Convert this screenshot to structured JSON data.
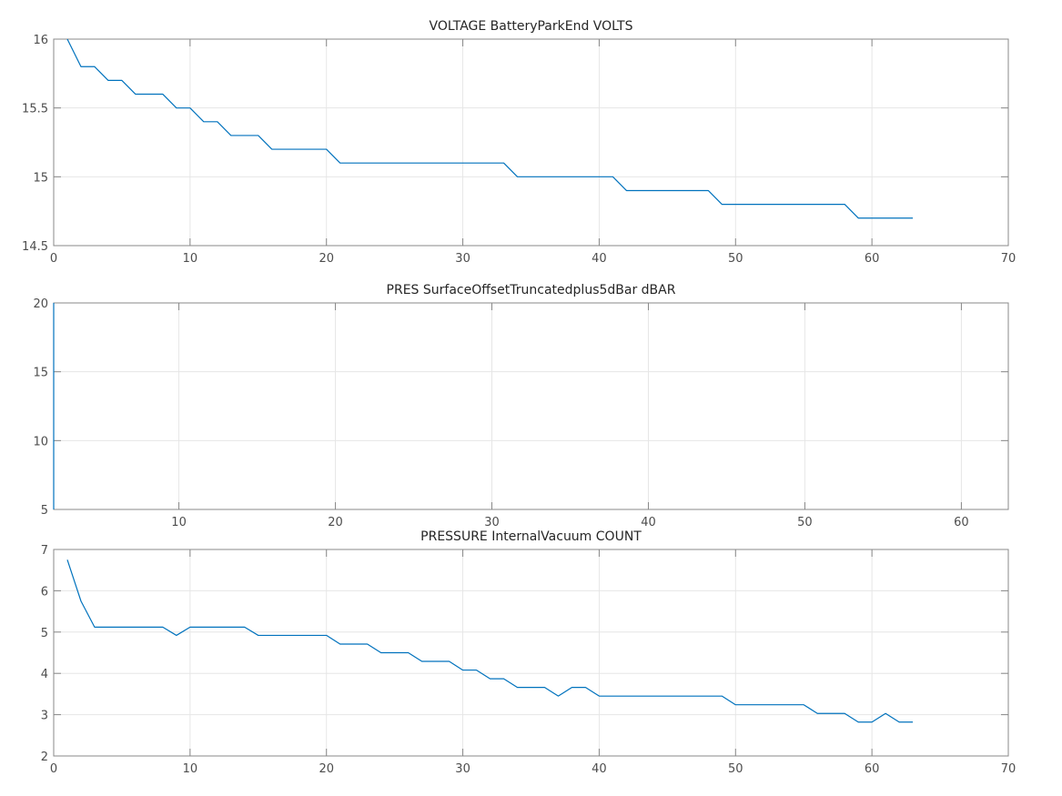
{
  "chart_data": [
    {
      "type": "line",
      "title": "VOLTAGE BatteryParkEnd VOLTS",
      "xlabel": "",
      "ylabel": "",
      "xlim": [
        0,
        70
      ],
      "ylim": [
        14.5,
        16
      ],
      "xticks": [
        0,
        10,
        20,
        30,
        40,
        50,
        60,
        70
      ],
      "yticks": [
        14.5,
        15,
        15.5,
        16
      ],
      "xtick_labels": [
        "0",
        "10",
        "20",
        "30",
        "40",
        "50",
        "60",
        "70"
      ],
      "ytick_labels": [
        "14.5",
        "15",
        "15.5",
        "16"
      ],
      "grid": true,
      "line_color": "#0072bd",
      "series": [
        {
          "x": [
            1,
            2,
            3,
            4,
            5,
            6,
            7,
            8,
            9,
            10,
            11,
            12,
            13,
            14,
            15,
            16,
            17,
            18,
            19,
            20,
            21,
            22,
            23,
            24,
            25,
            26,
            27,
            28,
            29,
            30,
            31,
            32,
            33,
            34,
            35,
            36,
            37,
            38,
            39,
            40,
            41,
            42,
            43,
            44,
            45,
            46,
            47,
            48,
            49,
            50,
            51,
            52,
            53,
            54,
            55,
            56,
            57,
            58,
            59,
            60,
            61,
            62,
            63
          ],
          "values": [
            16.0,
            15.8,
            15.8,
            15.7,
            15.7,
            15.6,
            15.6,
            15.6,
            15.5,
            15.5,
            15.4,
            15.4,
            15.3,
            15.3,
            15.3,
            15.2,
            15.2,
            15.2,
            15.2,
            15.2,
            15.1,
            15.1,
            15.1,
            15.1,
            15.1,
            15.1,
            15.1,
            15.1,
            15.1,
            15.1,
            15.1,
            15.1,
            15.1,
            15.0,
            15.0,
            15.0,
            15.0,
            15.0,
            15.0,
            15.0,
            15.0,
            14.9,
            14.9,
            14.9,
            14.9,
            14.9,
            14.9,
            14.9,
            14.8,
            14.8,
            14.8,
            14.8,
            14.8,
            14.8,
            14.8,
            14.8,
            14.8,
            14.8,
            14.7,
            14.7,
            14.7,
            14.7,
            14.7
          ]
        }
      ]
    },
    {
      "type": "line",
      "title": "PRES SurfaceOffsetTruncatedplus5dBar dBAR",
      "xlabel": "",
      "ylabel": "",
      "xlim": [
        2,
        63
      ],
      "ylim": [
        5,
        20
      ],
      "xticks": [
        10,
        20,
        30,
        40,
        50,
        60
      ],
      "yticks": [
        5,
        10,
        15,
        20
      ],
      "xtick_labels": [
        "10",
        "20",
        "30",
        "40",
        "50",
        "60"
      ],
      "ytick_labels": [
        "5",
        "10",
        "15",
        "20"
      ],
      "grid": true,
      "line_color": "#0072bd",
      "series": [
        {
          "x": [
            2,
            2
          ],
          "values": [
            5,
            20
          ]
        }
      ]
    },
    {
      "type": "line",
      "title": "PRESSURE InternalVacuum COUNT",
      "xlabel": "",
      "ylabel": "",
      "xlim": [
        0,
        70
      ],
      "ylim": [
        2,
        7
      ],
      "xticks": [
        0,
        10,
        20,
        30,
        40,
        50,
        60,
        70
      ],
      "yticks": [
        2,
        3,
        4,
        5,
        6,
        7
      ],
      "xtick_labels": [
        "0",
        "10",
        "20",
        "30",
        "40",
        "50",
        "60",
        "70"
      ],
      "ytick_labels": [
        "2",
        "3",
        "4",
        "5",
        "6",
        "7"
      ],
      "grid": true,
      "line_color": "#0072bd",
      "series": [
        {
          "x": [
            1,
            2,
            3,
            4,
            5,
            6,
            7,
            8,
            9,
            10,
            11,
            12,
            13,
            14,
            15,
            16,
            17,
            18,
            19,
            20,
            21,
            22,
            23,
            24,
            25,
            26,
            27,
            28,
            29,
            30,
            31,
            32,
            33,
            34,
            35,
            36,
            37,
            38,
            39,
            40,
            41,
            42,
            43,
            44,
            45,
            46,
            47,
            48,
            49,
            50,
            51,
            52,
            53,
            54,
            55,
            56,
            57,
            58,
            59,
            60,
            61,
            62,
            63
          ],
          "values": [
            6.75,
            5.75,
            5.12,
            5.12,
            5.12,
            5.12,
            5.12,
            5.12,
            4.92,
            5.12,
            5.12,
            5.12,
            5.12,
            5.12,
            4.92,
            4.92,
            4.92,
            4.92,
            4.92,
            4.92,
            4.71,
            4.71,
            4.71,
            4.5,
            4.5,
            4.5,
            4.29,
            4.29,
            4.29,
            4.08,
            4.08,
            3.87,
            3.87,
            3.66,
            3.66,
            3.66,
            3.45,
            3.66,
            3.66,
            3.45,
            3.45,
            3.45,
            3.45,
            3.45,
            3.45,
            3.45,
            3.45,
            3.45,
            3.45,
            3.24,
            3.24,
            3.24,
            3.24,
            3.24,
            3.24,
            3.03,
            3.03,
            3.03,
            2.82,
            2.82,
            3.03,
            2.82,
            2.82
          ]
        }
      ]
    }
  ]
}
